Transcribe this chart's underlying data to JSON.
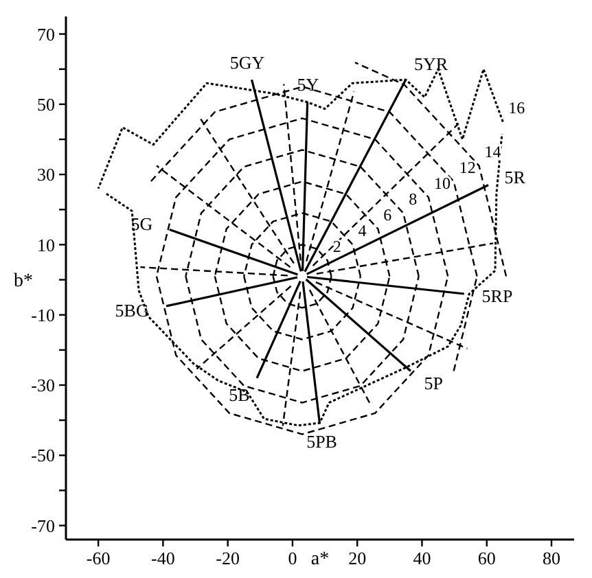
{
  "chart_data": {
    "type": "line",
    "xlabel": "a*",
    "ylabel": "b*",
    "xlim": [
      -70,
      87
    ],
    "ylim": [
      -74,
      75
    ],
    "xticks": [
      -60,
      -40,
      -20,
      0,
      20,
      40,
      60,
      80
    ],
    "yticks": [
      {
        "value": -70,
        "label": "-70"
      },
      {
        "value": -60,
        "label": null
      },
      {
        "value": -50,
        "label": "-50"
      },
      {
        "value": -40,
        "label": null
      },
      {
        "value": -30,
        "label": "-30"
      },
      {
        "value": -20,
        "label": null
      },
      {
        "value": -10,
        "label": "-10"
      },
      {
        "value": 0,
        "label": null
      },
      {
        "value": 10,
        "label": "10"
      },
      {
        "value": 20,
        "label": null
      },
      {
        "value": 30,
        "label": "30"
      },
      {
        "value": 40,
        "label": null
      },
      {
        "value": 50,
        "label": "50"
      },
      {
        "value": 60,
        "label": null
      },
      {
        "value": 70,
        "label": "70"
      }
    ],
    "grid": false,
    "series": [
      {
        "name": "5R",
        "color": "#000000",
        "line_style": "solid",
        "x": [
          4.4,
          60.5
        ],
        "values": [
          1.6,
          27
        ]
      },
      {
        "name": "5YR",
        "color": "#000000",
        "line_style": "solid",
        "x": [
          3.8,
          35
        ],
        "values": [
          2.3,
          57
        ]
      },
      {
        "name": "5Y",
        "color": "#000000",
        "line_style": "solid",
        "x": [
          3.1,
          4.6
        ],
        "values": [
          2.5,
          50.6
        ]
      },
      {
        "name": "5GY",
        "color": "#000000",
        "line_style": "solid",
        "x": [
          2.6,
          -12.6
        ],
        "values": [
          2.4,
          57
        ]
      },
      {
        "name": "5G",
        "color": "#000000",
        "line_style": "solid",
        "x": [
          1.6,
          -38
        ],
        "values": [
          1.5,
          14.3
        ]
      },
      {
        "name": "5BG",
        "color": "#000000",
        "line_style": "solid",
        "x": [
          1.5,
          -39
        ],
        "values": [
          0.7,
          -7.5
        ]
      },
      {
        "name": "5B",
        "color": "#000000",
        "line_style": "solid",
        "x": [
          2.4,
          -11
        ],
        "values": [
          -0.4,
          -28
        ]
      },
      {
        "name": "5PB",
        "color": "#000000",
        "line_style": "solid",
        "x": [
          3.2,
          8.4
        ],
        "values": [
          -0.5,
          -41
        ]
      },
      {
        "name": "5P",
        "color": "#000000",
        "line_style": "solid",
        "x": [
          4.2,
          36.5
        ],
        "values": [
          0.1,
          -26
        ]
      },
      {
        "name": "5RP",
        "color": "#000000",
        "line_style": "solid",
        "x": [
          4.5,
          53
        ],
        "values": [
          0.8,
          -4
        ]
      },
      {
        "color": "#000000",
        "line_style": "dashed",
        "x": [
          6.3,
          51.3
        ],
        "values": [
          4,
          44.5
        ]
      },
      {
        "color": "#000000",
        "line_style": "dashed",
        "x": [
          4.3,
          19
        ],
        "values": [
          5.3,
          53.6
        ]
      },
      {
        "color": "#000000",
        "line_style": "dashed",
        "x": [
          2.5,
          -2.7
        ],
        "values": [
          5.5,
          55.7
        ]
      },
      {
        "color": "#000000",
        "line_style": "dashed",
        "x": [
          0.4,
          -28.5
        ],
        "values": [
          4.7,
          46
        ]
      },
      {
        "color": "#000000",
        "line_style": "dashed",
        "x": [
          -0.7,
          -42
        ],
        "values": [
          3.6,
          32.5
        ]
      },
      {
        "color": "#000000",
        "line_style": "dashed",
        "x": [
          -1.5,
          -47
        ],
        "values": [
          1.2,
          3.6
        ]
      },
      {
        "color": "#000000",
        "line_style": "dashed",
        "x": [
          -0.5,
          -29.6
        ],
        "values": [
          -1.8,
          -25.4
        ]
      },
      {
        "color": "#000000",
        "line_style": "dashed",
        "x": [
          2.4,
          -3
        ],
        "values": [
          -3.5,
          -41.6
        ]
      },
      {
        "color": "#000000",
        "line_style": "dashed",
        "x": [
          5.3,
          24
        ],
        "values": [
          -2.9,
          -35.4
        ]
      },
      {
        "color": "#000000",
        "line_style": "dashed",
        "x": [
          7.2,
          54
        ],
        "values": [
          -0.7,
          -19.6
        ]
      },
      {
        "color": "#000000",
        "line_style": "dashed",
        "x": [
          7.4,
          62
        ],
        "values": [
          1.7,
          10.4
        ]
      },
      {
        "color": "#000000",
        "line_style": "dashed",
        "x": [
          12,
          10.8,
          7.5,
          3,
          -1.5,
          -4.8,
          -6
        ],
        "values": [
          1,
          5.5,
          8.8,
          10,
          8.8,
          5.5,
          1
        ]
      },
      {
        "color": "#000000",
        "line_style": "dashed",
        "x": [
          -6,
          -4.8,
          -1.5,
          3,
          7.5,
          10.8,
          12
        ],
        "values": [
          1,
          -3.5,
          -6.8,
          -8,
          -6.8,
          -3.5,
          1
        ]
      },
      {
        "color": "#000000",
        "line_style": "dashed",
        "x": [
          21,
          18.6,
          12,
          3,
          -6,
          -12.6,
          -15
        ],
        "values": [
          1,
          10,
          16.6,
          19,
          16.6,
          10,
          1
        ]
      },
      {
        "color": "#000000",
        "line_style": "dashed",
        "x": [
          -15,
          -12.6,
          -6,
          3,
          12,
          18.6,
          21
        ],
        "values": [
          1,
          -8,
          -14.6,
          -17,
          -14.6,
          -8,
          1
        ]
      },
      {
        "color": "#000000",
        "line_style": "dashed",
        "x": [
          30,
          26.4,
          16.5,
          3,
          -10.5,
          -20.4,
          -24
        ],
        "values": [
          1,
          14.5,
          24.4,
          28,
          24.4,
          14.5,
          1
        ]
      },
      {
        "color": "#000000",
        "line_style": "dashed",
        "x": [
          -24,
          -20.4,
          -10.5,
          3,
          16.5,
          26.4,
          30
        ],
        "values": [
          1,
          -12.5,
          -22.4,
          -26,
          -22.4,
          -12.5,
          1
        ]
      },
      {
        "color": "#000000",
        "line_style": "dashed",
        "x": [
          39,
          34.2,
          21,
          3,
          -15,
          -28.2,
          -33
        ],
        "values": [
          1,
          19,
          32.2,
          37,
          32.2,
          19,
          1
        ]
      },
      {
        "color": "#000000",
        "line_style": "dashed",
        "x": [
          -33,
          -28.2,
          -15,
          3,
          21,
          34.2,
          39
        ],
        "values": [
          1,
          -17,
          -30.2,
          -35,
          -30.2,
          -17,
          1
        ]
      },
      {
        "color": "#000000",
        "line_style": "dashed",
        "x": [
          48,
          42,
          25.5,
          3,
          -19.5,
          -36,
          -42
        ],
        "values": [
          1,
          23.5,
          40,
          46,
          40,
          23.5,
          1
        ]
      },
      {
        "color": "#000000",
        "line_style": "dashed",
        "x": [
          -42,
          -36,
          -19.5,
          3,
          25.5,
          42,
          48
        ],
        "values": [
          1,
          -21.5,
          -38,
          -44,
          -38,
          -21.5,
          1
        ]
      },
      {
        "color": "#000000",
        "line_style": "dashed",
        "x": [
          49.8,
          57
        ],
        "values": [
          -26,
          1
        ]
      },
      {
        "color": "#000000",
        "line_style": "dashed",
        "x": [
          57,
          49.8,
          30,
          3,
          -24,
          -43.8
        ],
        "values": [
          1,
          28,
          47.8,
          55,
          47.8,
          28
        ]
      },
      {
        "color": "#000000",
        "line_style": "dashed",
        "x": [
          66,
          57.6,
          34.5,
          19.3
        ],
        "values": [
          1,
          32.5,
          55.6,
          61.9
        ]
      },
      {
        "color": "#000000",
        "line_style": "dotted",
        "x": [
          65,
          59,
          52.5,
          45,
          40.8,
          35,
          18.5,
          10,
          4.6,
          -5.5,
          -26.5,
          -43,
          -52.5,
          -60
        ],
        "values": [
          45,
          60,
          40,
          60,
          52,
          57,
          56,
          48.7,
          50.6,
          53,
          56,
          38.5,
          43.4,
          26
        ]
      },
      {
        "color": "#000000",
        "line_style": "dotted",
        "x": [
          -57.5,
          -49.6,
          -48.5,
          -47.5,
          -44.5,
          -30.7,
          -23,
          -14,
          -8.8,
          1.7,
          8.4,
          11.3,
          35,
          48,
          52,
          54.6,
          62.6,
          63,
          64.7
        ],
        "values": [
          24.5,
          19.6,
          8,
          -3,
          -10.5,
          -23.8,
          -28.7,
          -32,
          -39.6,
          -41.5,
          -40.8,
          -35,
          -25,
          -19,
          -13,
          -4,
          2.6,
          24.5,
          41.5
        ]
      }
    ],
    "annotations": [
      {
        "text": "2",
        "x": 10.8,
        "y": 5.5
      },
      {
        "text": "4",
        "x": 18.6,
        "y": 10
      },
      {
        "text": "6",
        "x": 26.4,
        "y": 14.5
      },
      {
        "text": "8",
        "x": 34.2,
        "y": 19
      },
      {
        "text": "10",
        "x": 42,
        "y": 23.5
      },
      {
        "text": "12",
        "x": 49.8,
        "y": 28
      },
      {
        "text": "14",
        "x": 57.6,
        "y": 32.5
      },
      {
        "text": "16",
        "x": 65,
        "y": 45
      }
    ]
  }
}
